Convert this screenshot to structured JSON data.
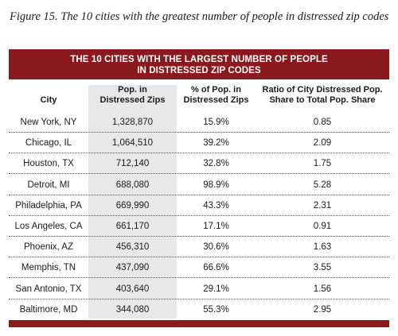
{
  "figure": {
    "caption": "Figure 15.  The 10 cities with the greatest number of people in distressed zip codes"
  },
  "table": {
    "title_line1": "THE 10 CITIES WITH THE LARGEST NUMBER OF PEOPLE",
    "title_line2": "IN DISTRESSED ZIP CODES",
    "headers": {
      "city": "City",
      "pop_line1": "Pop. in",
      "pop_line2": "Distressed Zips",
      "pct_line1": "% of Pop. in",
      "pct_line2": "Distressed Zips",
      "ratio_line1": "Ratio of City Distressed Pop.",
      "ratio_line2": "Share to Total Pop. Share"
    },
    "rows": [
      {
        "city": "New York, NY",
        "pop": "1,328,870",
        "pct": "15.9%",
        "ratio": "0.85"
      },
      {
        "city": "Chicago, IL",
        "pop": "1,064,510",
        "pct": "39.2%",
        "ratio": "2.09"
      },
      {
        "city": "Houston, TX",
        "pop": "712,140",
        "pct": "32.8%",
        "ratio": "1.75"
      },
      {
        "city": "Detroit, MI",
        "pop": "688,080",
        "pct": "98.9%",
        "ratio": "5.28"
      },
      {
        "city": "Philadelphia, PA",
        "pop": "669,990",
        "pct": "43.3%",
        "ratio": "2.31"
      },
      {
        "city": "Los Angeles, CA",
        "pop": "661,170",
        "pct": "17.1%",
        "ratio": "0.91"
      },
      {
        "city": "Phoenix, AZ",
        "pop": "456,310",
        "pct": "30.6%",
        "ratio": "1.63"
      },
      {
        "city": "Memphis, TN",
        "pop": "437,090",
        "pct": "66.6%",
        "ratio": "3.55"
      },
      {
        "city": "San Antonio, TX",
        "pop": "403,640",
        "pct": "29.1%",
        "ratio": "1.56"
      },
      {
        "city": "Baltimore, MD",
        "pop": "344,080",
        "pct": "55.3%",
        "ratio": "2.95"
      }
    ]
  },
  "colors": {
    "accent": "#8b1a1f",
    "shaded_column": "#e8e8e8"
  }
}
